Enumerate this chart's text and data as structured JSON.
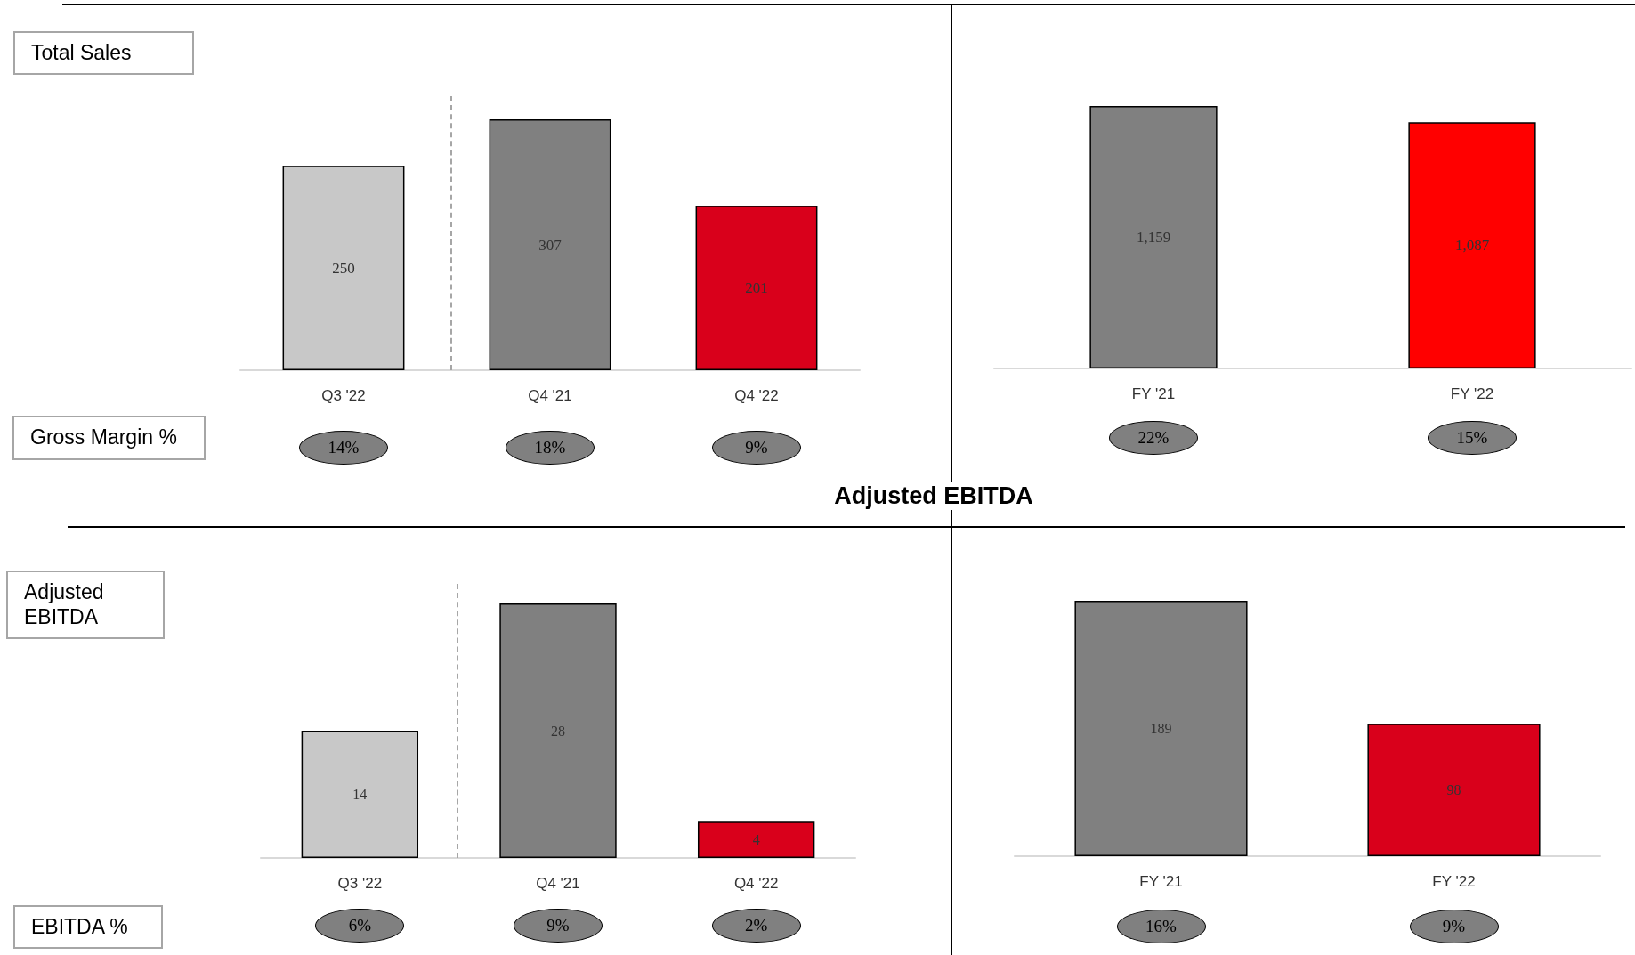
{
  "chart_data": [
    {
      "type": "bar",
      "categories": [
        "Q3 '22",
        "Q4 '21",
        "Q4 '22"
      ],
      "values": [
        250,
        307,
        201
      ],
      "colors": [
        "#c8c8c8",
        "#808080",
        "#d9001b"
      ],
      "data_labels": true,
      "annotations": [
        "Total Sales",
        "Gross Margin %",
        "14%",
        "18%",
        "9%"
      ]
    },
    {
      "type": "bar",
      "categories": [
        "FY '21",
        "FY '22"
      ],
      "values": [
        1159,
        1087
      ],
      "colors": [
        "#808080",
        "#ff0000"
      ],
      "value_labels": [
        "1,159",
        "1,087"
      ],
      "annotations": [
        "22%",
        "15%"
      ]
    },
    {
      "type": "bar",
      "title": "Adjusted EBITDA",
      "categories": [
        "Q3 '22",
        "Q4 '21",
        "Q4 '22"
      ],
      "values": [
        14,
        28,
        4
      ],
      "colors": [
        "#c8c8c8",
        "#808080",
        "#d9001b"
      ],
      "data_labels": true,
      "annotations": [
        "Adjusted EBITDA",
        "EBITDA %",
        "6%",
        "9%",
        "2%"
      ]
    },
    {
      "type": "bar",
      "categories": [
        "FY '21",
        "FY '22"
      ],
      "values": [
        189,
        98
      ],
      "colors": [
        "#808080",
        "#d9001b"
      ],
      "data_labels": true,
      "annotations": [
        "16%",
        "9%"
      ]
    }
  ]
}
